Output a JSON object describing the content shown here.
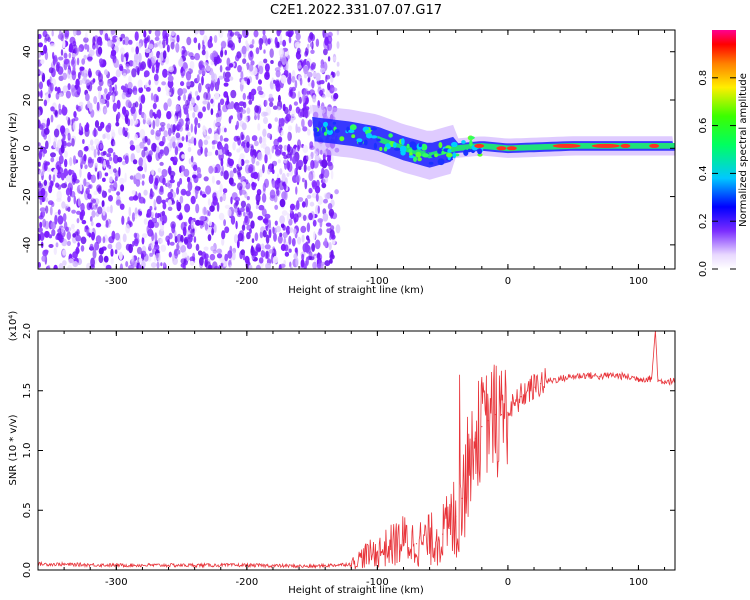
{
  "title": "C2E1.2022.331.07.07.G17",
  "chart_data": [
    {
      "type": "heatmap",
      "xlabel": "Height of straight line (km)",
      "ylabel": "Frequency (Hz)",
      "xlim": [
        -360,
        128
      ],
      "ylim": [
        -50,
        49
      ],
      "xticks": [
        "-300",
        "-200",
        "-100",
        "0",
        "100"
      ],
      "yticks": [
        "40",
        "20",
        "0",
        "-20",
        "-40"
      ],
      "colorbar": {
        "label": "Normalized spectral amplitude",
        "range": [
          0,
          1
        ],
        "ticks": [
          "0.0",
          "0.2",
          "0.4",
          "0.6",
          "0.8"
        ]
      },
      "features": {
        "noise_region_x": [
          -360,
          -130
        ],
        "signal_start_x": -150,
        "signal_center_freq": [
          [
            -150,
            8
          ],
          [
            -120,
            6
          ],
          [
            -100,
            4
          ],
          [
            -80,
            0
          ],
          [
            -60,
            -3
          ],
          [
            -40,
            0
          ],
          [
            -20,
            1
          ],
          [
            0,
            0
          ],
          [
            50,
            1
          ],
          [
            100,
            1
          ],
          [
            128,
            1
          ]
        ]
      },
      "grid": false
    },
    {
      "type": "line",
      "xlabel": "Height of straight line (km)",
      "ylabel": "SNR (10 * v/v)",
      "multiplier": "(x10⁴)",
      "xlim": [
        -360,
        128
      ],
      "ylim": [
        0,
        2.0
      ],
      "xticks": [
        "-300",
        "-200",
        "-100",
        "0",
        "100"
      ],
      "yticks": [
        "0.0",
        "0.5",
        "1.0",
        "1.5",
        "2.0"
      ],
      "color": "#e8343a",
      "series": [
        {
          "x": [
            -360,
            -300,
            -250,
            -200,
            -150,
            -120,
            -110,
            -100,
            -90,
            -80,
            -70,
            -60,
            -50,
            -45,
            -40,
            -35,
            -30,
            -25,
            -20,
            -15,
            -10,
            -5,
            0,
            5,
            10,
            15,
            20,
            25,
            30,
            40,
            50,
            60,
            70,
            80,
            90,
            100,
            110,
            113,
            115,
            120,
            128
          ],
          "y": [
            0.05,
            0.04,
            0.04,
            0.04,
            0.03,
            0.05,
            0.12,
            0.15,
            0.2,
            0.25,
            0.22,
            0.25,
            0.3,
            0.35,
            0.45,
            0.6,
            0.9,
            1.1,
            1.2,
            1.25,
            1.3,
            1.3,
            1.32,
            1.38,
            1.45,
            1.5,
            1.53,
            1.56,
            1.58,
            1.6,
            1.62,
            1.63,
            1.62,
            1.63,
            1.62,
            1.6,
            1.6,
            2.0,
            1.58,
            1.58,
            1.58
          ]
        }
      ],
      "grid": false
    }
  ]
}
